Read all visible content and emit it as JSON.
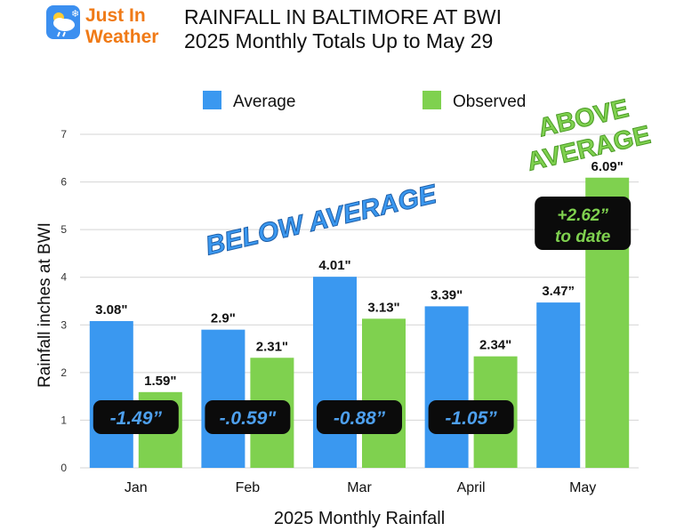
{
  "logo": {
    "line1": "Just In",
    "line2": "Weather"
  },
  "title": "RAINFALL IN BALTIMORE AT BWI",
  "subtitle": "2025 Monthly Totals Up to May 29",
  "colors": {
    "average": "#3a98f0",
    "observed": "#7fd14f",
    "callout_bg": "#0b0b0b",
    "callout_text_negative": "#4ea0ee",
    "callout_text_positive": "#7fd14f",
    "annotation_blue": "#3a98f0",
    "annotation_green": "#7fd14f",
    "grid": "#d4d4d4"
  },
  "chart_data": {
    "type": "bar",
    "categories": [
      "Jan",
      "Feb",
      "Mar",
      "April",
      "May"
    ],
    "series": [
      {
        "name": "Average",
        "values": [
          3.08,
          2.9,
          4.01,
          3.39,
          3.47
        ],
        "labels": [
          "3.08\"",
          "2.9\"",
          "4.01\"",
          "3.39\"",
          "3.47”"
        ]
      },
      {
        "name": "Observed",
        "values": [
          1.59,
          2.31,
          3.13,
          2.34,
          6.09
        ],
        "labels": [
          "1.59\"",
          "2.31\"",
          "3.13\"",
          "2.34\"",
          "6.09\""
        ]
      }
    ],
    "xlabel": "2025 Monthly Rainfall",
    "ylabel": "Rainfall inches at BWI",
    "ylim": [
      0,
      7
    ],
    "yticks": [
      "0",
      "1",
      "2",
      "3",
      "4",
      "5",
      "6",
      "7"
    ],
    "grid": true,
    "legend_position": "top",
    "differences": [
      {
        "month": "Jan",
        "text": "-1.49”"
      },
      {
        "month": "Feb",
        "text": "-.0.59\""
      },
      {
        "month": "Mar",
        "text": "-0.88”"
      },
      {
        "month": "April",
        "text": "-1.05”"
      },
      {
        "month": "May",
        "line1": "+2.62”",
        "line2": "to date"
      }
    ],
    "annotations": {
      "below": "BELOW AVERAGE",
      "above_line1": "ABOVE",
      "above_line2": "AVERAGE"
    }
  }
}
